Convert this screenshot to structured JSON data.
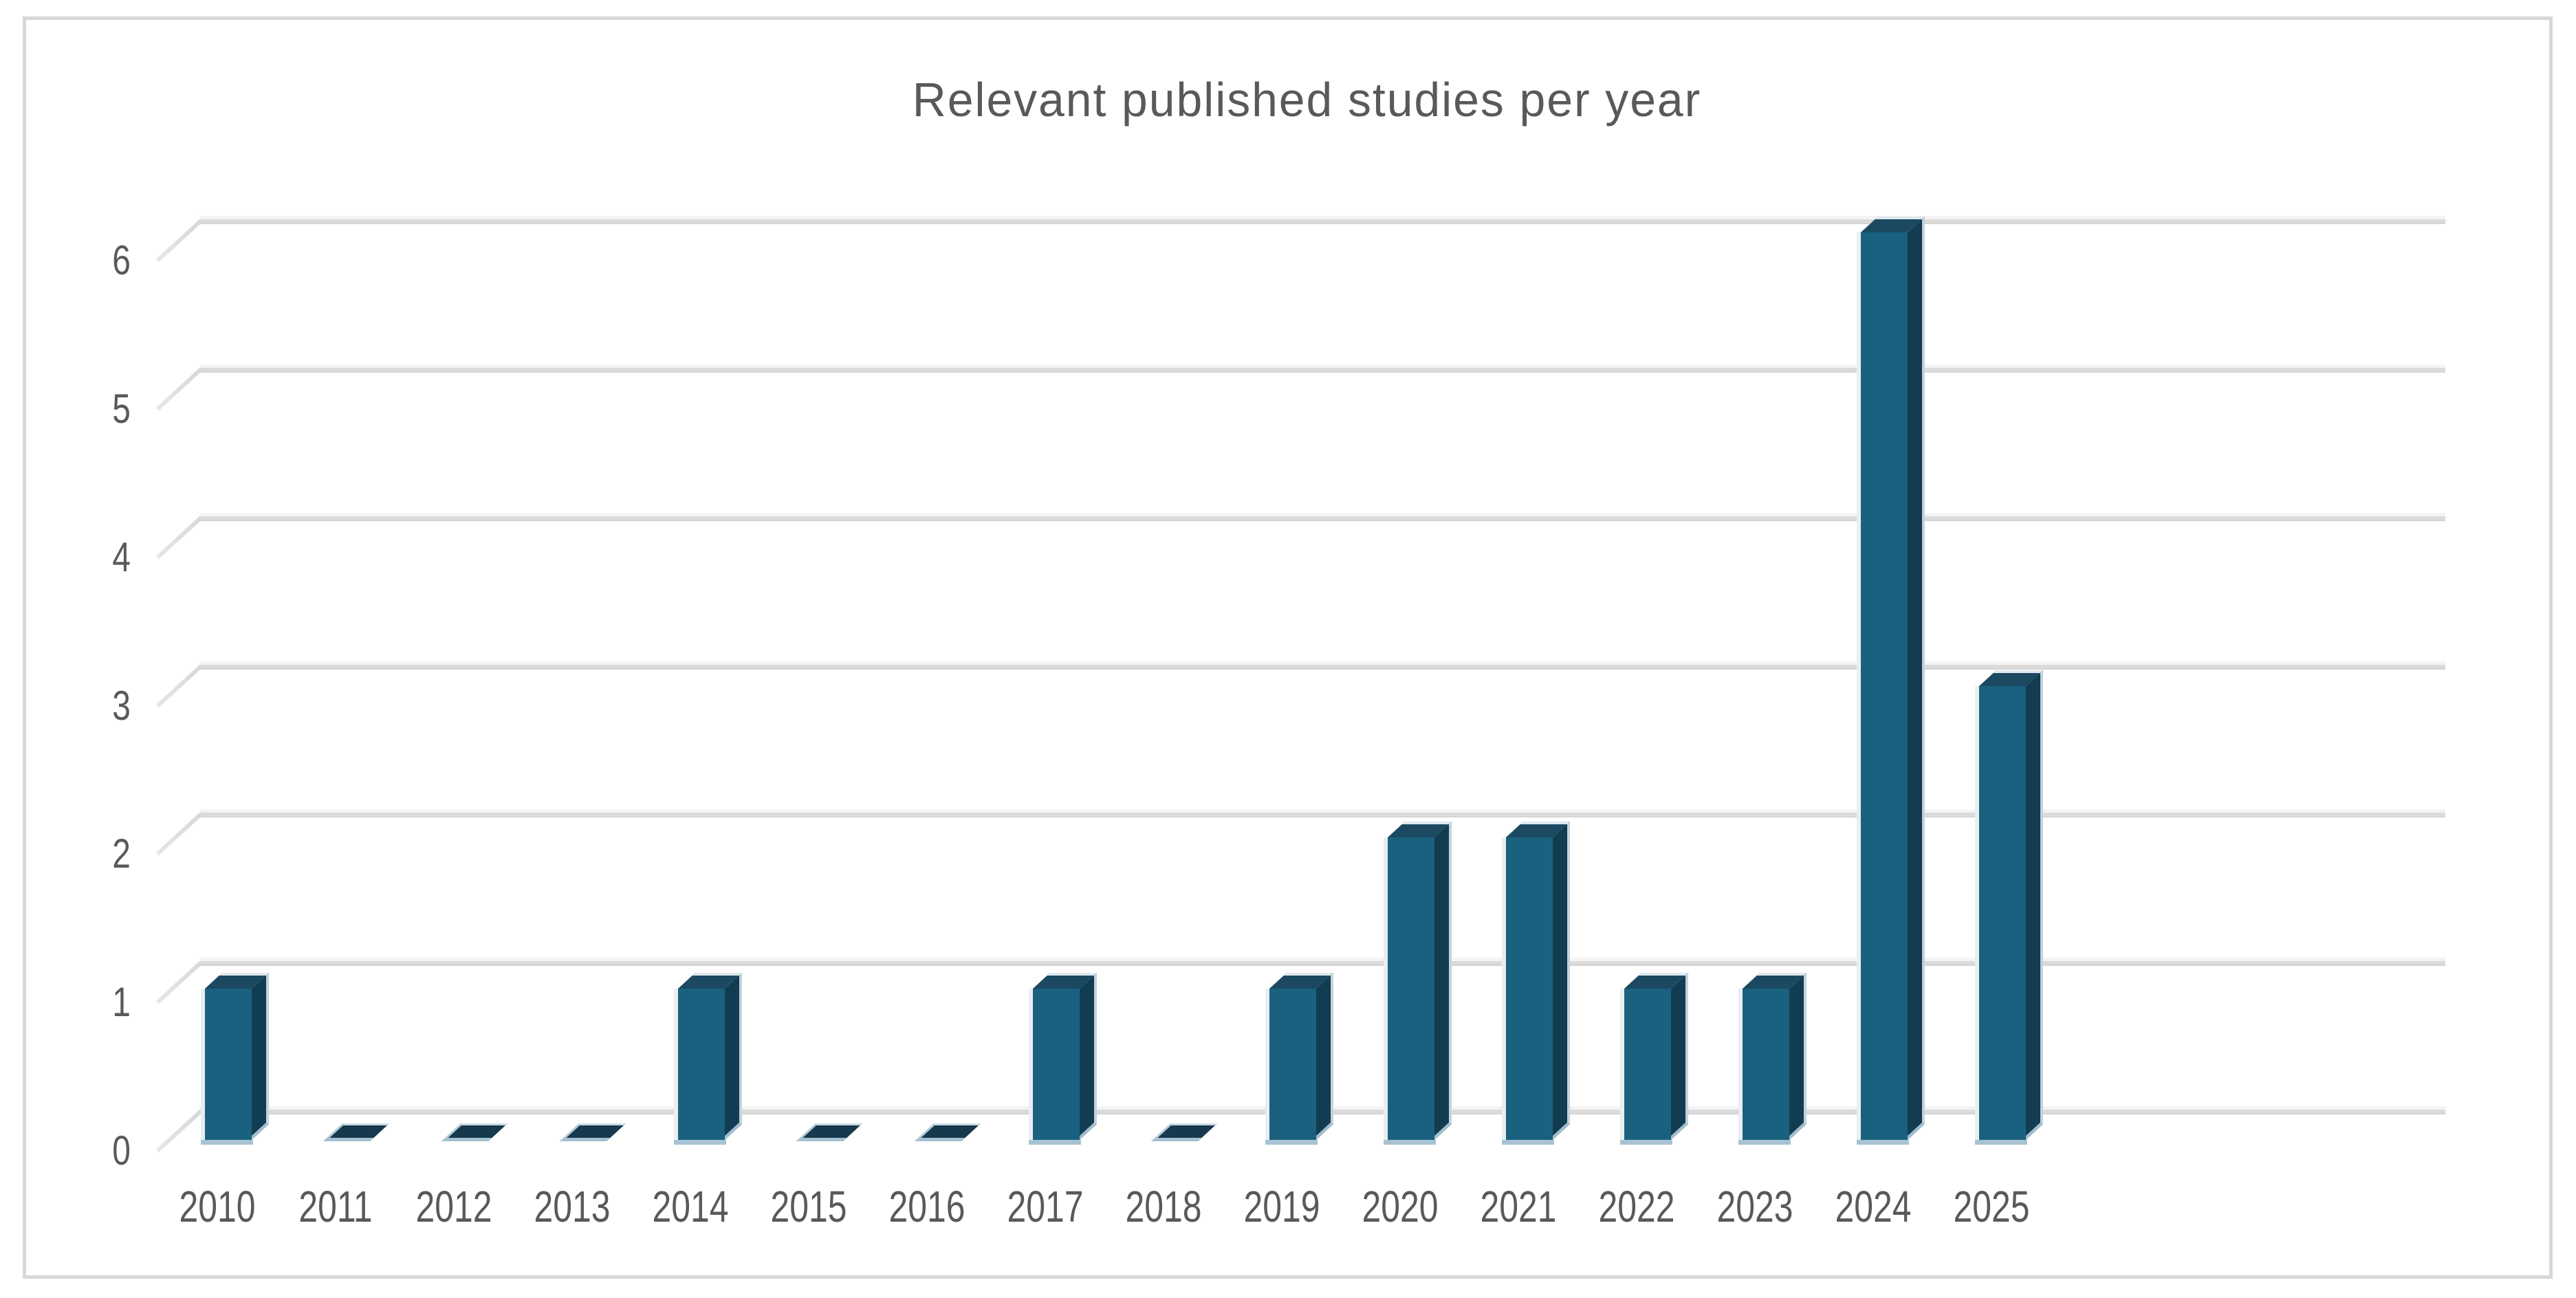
{
  "title": "Relevant published studies per year",
  "colors": {
    "bar_front": "#19617F",
    "bar_side": "#123C52",
    "bar_top": "#1B4961",
    "bar_zero_tile": "#16394D",
    "edge_highlight": "#A7C3D3",
    "gridline": "#DBDBDB",
    "text": "#595959",
    "frame": "#D8D8D8",
    "background": "#FFFFFF"
  },
  "chart_data": {
    "type": "bar",
    "style": "3d-column",
    "title": "Relevant published studies per year",
    "categories": [
      "2010",
      "2011",
      "2012",
      "2013",
      "2014",
      "2015",
      "2016",
      "2017",
      "2018",
      "2019",
      "2020",
      "2021",
      "2022",
      "2023",
      "2024",
      "2025"
    ],
    "values": [
      1,
      0,
      0,
      0,
      1,
      0,
      0,
      1,
      0,
      1,
      2,
      2,
      1,
      1,
      6,
      3
    ],
    "xlabel": "",
    "ylabel": "",
    "ylim": [
      0,
      6
    ],
    "yticks": [
      0,
      1,
      2,
      3,
      4,
      5,
      6
    ],
    "grid": true,
    "legend": false
  }
}
